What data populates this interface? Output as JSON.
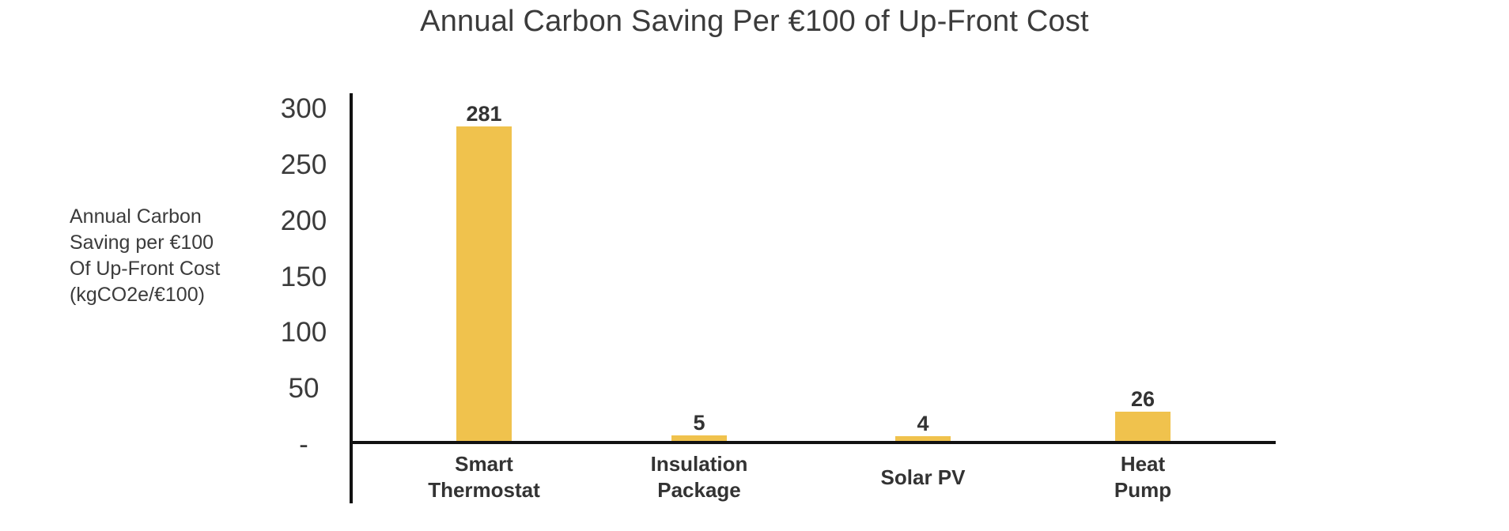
{
  "title": "Annual Carbon Saving Per €100 of Up-Front Cost",
  "colors": {
    "bar": "#F0C24D",
    "text": "#3B3B3B",
    "label": "#333333",
    "axis": "#111111",
    "background": "#FFFFFF"
  },
  "y_axis": {
    "label_lines": [
      "Annual Carbon",
      "Saving per €100",
      "Of Up-Front Cost",
      "(kgCO2e/€100)"
    ],
    "ticks": [
      "300",
      "250",
      "200",
      "150",
      "100",
      "50",
      "-"
    ],
    "tick_values": [
      300,
      250,
      200,
      150,
      100,
      50,
      0
    ]
  },
  "chart_data": {
    "type": "bar",
    "title": "Annual Carbon Saving Per €100 of Up-Front Cost",
    "categories": [
      "Smart Thermostat",
      "Insulation Package",
      "Solar PV",
      "Heat Pump"
    ],
    "categories_wrapped": [
      [
        "Smart",
        "Thermostat"
      ],
      [
        "Insulation",
        "Package"
      ],
      [
        "Solar PV"
      ],
      [
        "Heat",
        "Pump"
      ]
    ],
    "values": [
      281,
      5,
      4,
      26
    ],
    "data_labels": [
      "281",
      "5",
      "4",
      "26"
    ],
    "xlabel": "",
    "ylabel": "Annual Carbon Saving per €100 Of Up-Front Cost (kgCO2e/€100)",
    "ylim": [
      0,
      300
    ],
    "ytick_step": 50,
    "grid": false,
    "legend": "none",
    "bar_color": "#F0C24D"
  }
}
